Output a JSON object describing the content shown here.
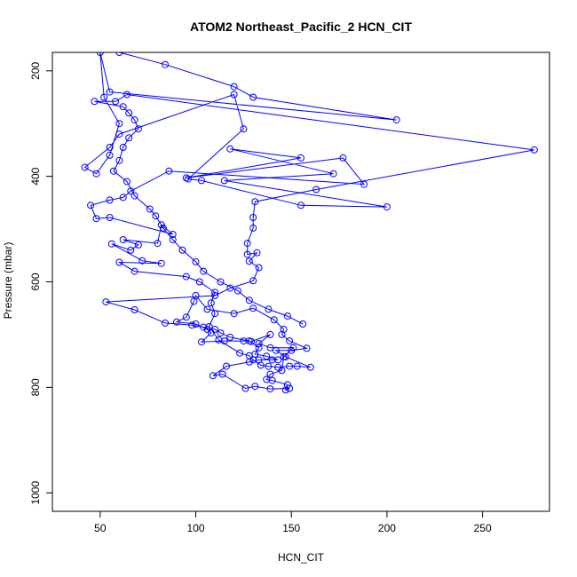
{
  "chart_data": {
    "type": "line",
    "title": "ATOM2 Northeast_Pacific_2 HCN_CIT",
    "xlabel": "HCN_CIT",
    "ylabel": "Pressure (mbar)",
    "xlim": [
      25,
      285
    ],
    "ylim": [
      1035,
      165
    ],
    "x_ticks": [
      50,
      100,
      150,
      200,
      250
    ],
    "y_ticks": [
      200,
      400,
      600,
      800,
      1000
    ],
    "y_reversed": true,
    "grid": false,
    "legend": "none",
    "line_color": "#0000ff",
    "marker": "open-circle",
    "series": [
      {
        "points": [
          [
            60,
            165
          ],
          [
            84,
            188
          ],
          [
            120,
            230
          ],
          [
            130,
            250
          ],
          [
            205,
            293
          ],
          [
            55,
            240
          ],
          [
            50,
            165
          ],
          [
            52,
            250
          ],
          [
            60,
            300
          ],
          [
            55,
            360
          ],
          [
            48,
            395
          ],
          [
            42,
            383
          ],
          [
            55,
            345
          ],
          [
            60,
            320
          ],
          [
            120,
            245
          ],
          [
            125,
            310
          ],
          [
            96,
            405
          ],
          [
            103,
            408
          ],
          [
            155,
            455
          ],
          [
            200,
            458
          ],
          [
            115,
            408
          ],
          [
            172,
            395
          ],
          [
            118,
            348
          ],
          [
            155,
            365
          ],
          [
            95,
            403
          ],
          [
            177,
            365
          ],
          [
            188,
            415
          ],
          [
            86,
            390
          ],
          [
            66,
            428
          ],
          [
            62,
            440
          ],
          [
            55,
            445
          ],
          [
            45,
            455
          ],
          [
            48,
            480
          ],
          [
            55,
            478
          ],
          [
            88,
            510
          ],
          [
            82,
            492
          ],
          [
            80,
            527
          ],
          [
            62,
            520
          ],
          [
            70,
            530
          ],
          [
            66,
            540
          ],
          [
            56,
            528
          ],
          [
            72,
            560
          ],
          [
            82,
            565
          ],
          [
            60,
            563
          ],
          [
            68,
            580
          ],
          [
            95,
            590
          ],
          [
            102,
            600
          ],
          [
            110,
            620
          ],
          [
            108,
            640
          ],
          [
            110,
            660
          ],
          [
            107,
            685
          ],
          [
            112,
            710
          ],
          [
            123,
            735
          ],
          [
            128,
            740
          ],
          [
            130,
            748
          ],
          [
            134,
            758
          ],
          [
            138,
            760
          ],
          [
            143,
            762
          ],
          [
            149,
            760
          ],
          [
            153,
            760
          ],
          [
            160,
            762
          ],
          [
            147,
            742
          ],
          [
            142,
            730
          ],
          [
            150,
            730
          ],
          [
            158,
            726
          ],
          [
            149,
            712
          ],
          [
            145,
            700
          ],
          [
            146,
            690
          ],
          [
            141,
            672
          ],
          [
            130,
            650
          ],
          [
            120,
            660
          ],
          [
            106,
            652
          ],
          [
            100,
            626
          ],
          [
            99,
            637
          ],
          [
            95,
            667
          ],
          [
            90,
            676
          ],
          [
            100,
            680
          ],
          [
            106,
            690
          ],
          [
            108,
            697
          ],
          [
            103,
            714
          ],
          [
            115,
            712
          ],
          [
            125,
            712
          ],
          [
            129,
            713
          ],
          [
            139,
            700
          ],
          [
            133,
            717
          ],
          [
            139,
            725
          ],
          [
            151,
            725
          ],
          [
            146,
            742
          ],
          [
            145,
            768
          ],
          [
            139,
            775
          ],
          [
            137,
            785
          ],
          [
            140,
            787
          ],
          [
            148,
            795
          ],
          [
            147,
            805
          ],
          [
            149,
            802
          ],
          [
            139,
            803
          ],
          [
            131,
            798
          ],
          [
            126,
            802
          ],
          [
            114,
            775
          ],
          [
            109,
            778
          ],
          [
            116,
            760
          ],
          [
            128,
            752
          ],
          [
            133,
            748
          ],
          [
            140,
            748
          ],
          [
            143,
            748
          ],
          [
            137,
            741
          ],
          [
            131,
            737
          ],
          [
            133,
            725
          ],
          [
            128,
            712
          ],
          [
            118,
            705
          ],
          [
            113,
            697
          ],
          [
            110,
            690
          ],
          [
            104,
            686
          ],
          [
            98,
            682
          ],
          [
            84,
            678
          ],
          [
            68,
            653
          ],
          [
            53,
            638
          ],
          [
            110,
            626
          ],
          [
            118,
            612
          ],
          [
            130,
            598
          ],
          [
            133,
            573
          ],
          [
            128,
            561
          ],
          [
            132,
            545
          ],
          [
            127,
            548
          ],
          [
            127,
            527
          ],
          [
            130,
            498
          ],
          [
            130,
            478
          ],
          [
            131,
            448
          ],
          [
            163,
            425
          ],
          [
            277,
            350
          ],
          [
            64,
            245
          ],
          [
            58,
            258
          ],
          [
            47,
            258
          ],
          [
            62,
            268
          ],
          [
            65,
            280
          ],
          [
            68,
            293
          ],
          [
            70,
            310
          ],
          [
            65,
            327
          ],
          [
            62,
            345
          ],
          [
            60,
            370
          ],
          [
            57,
            390
          ],
          [
            64,
            410
          ],
          [
            68,
            437
          ],
          [
            76,
            462
          ],
          [
            79,
            475
          ],
          [
            83,
            498
          ],
          [
            88,
            520
          ],
          [
            93,
            540
          ],
          [
            100,
            562
          ],
          [
            104,
            580
          ],
          [
            113,
            600
          ],
          [
            122,
            617
          ],
          [
            128,
            635
          ],
          [
            138,
            652
          ],
          [
            148,
            665
          ],
          [
            156,
            680
          ]
        ]
      }
    ]
  }
}
